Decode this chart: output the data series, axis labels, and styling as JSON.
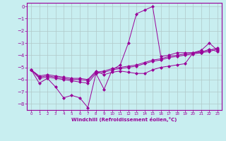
{
  "xlabel": "Windchill (Refroidissement éolien,°C)",
  "ylabel": "",
  "xlim": [
    -0.5,
    23.5
  ],
  "ylim": [
    -8.5,
    0.3
  ],
  "xticks": [
    0,
    1,
    2,
    3,
    4,
    5,
    6,
    7,
    8,
    9,
    10,
    11,
    12,
    13,
    14,
    15,
    16,
    17,
    18,
    19,
    20,
    21,
    22,
    23
  ],
  "yticks": [
    0,
    -1,
    -2,
    -3,
    -4,
    -5,
    -6,
    -7,
    -8
  ],
  "background_color": "#c8eef0",
  "line_color": "#990099",
  "grid_color": "#b0c8c8",
  "series": [
    {
      "x": [
        0,
        1,
        2,
        3,
        4,
        5,
        6,
        7,
        8,
        9,
        10,
        11,
        12,
        13,
        14,
        15,
        16,
        17,
        18,
        19,
        20,
        21,
        22,
        23
      ],
      "y": [
        -5.2,
        -6.3,
        -5.9,
        -6.6,
        -7.5,
        -7.3,
        -7.5,
        -8.3,
        -5.5,
        -6.8,
        -5.2,
        -4.8,
        -3.0,
        -0.6,
        -0.3,
        0.0,
        -4.1,
        -4.0,
        -3.8,
        -3.8,
        -3.8,
        -3.8,
        -3.5,
        -3.7
      ]
    },
    {
      "x": [
        0,
        1,
        2,
        3,
        4,
        5,
        6,
        7,
        8,
        9,
        10,
        11,
        12,
        13,
        14,
        15,
        16,
        17,
        18,
        19,
        20,
        21,
        22,
        23
      ],
      "y": [
        -5.2,
        -5.9,
        -5.8,
        -5.9,
        -6.0,
        -6.1,
        -6.2,
        -6.3,
        -5.5,
        -5.4,
        -5.2,
        -5.1,
        -5.0,
        -4.9,
        -4.7,
        -4.5,
        -4.4,
        -4.2,
        -4.1,
        -4.0,
        -3.9,
        -3.8,
        -3.7,
        -3.5
      ]
    },
    {
      "x": [
        0,
        1,
        2,
        3,
        4,
        5,
        6,
        7,
        8,
        9,
        10,
        11,
        12,
        13,
        14,
        15,
        16,
        17,
        18,
        19,
        20,
        21,
        22,
        23
      ],
      "y": [
        -5.2,
        -5.8,
        -5.7,
        -5.8,
        -5.9,
        -6.0,
        -6.0,
        -6.1,
        -5.4,
        -5.3,
        -5.1,
        -5.0,
        -4.9,
        -4.8,
        -4.6,
        -4.4,
        -4.3,
        -4.1,
        -4.0,
        -3.9,
        -3.8,
        -3.7,
        -3.6,
        -3.4
      ]
    },
    {
      "x": [
        0,
        1,
        2,
        3,
        4,
        5,
        6,
        7,
        8,
        9,
        10,
        11,
        12,
        13,
        14,
        15,
        16,
        17,
        18,
        19,
        20,
        21,
        22,
        23
      ],
      "y": [
        -5.2,
        -5.7,
        -5.6,
        -5.7,
        -5.8,
        -5.9,
        -5.9,
        -6.0,
        -5.3,
        -5.6,
        -5.4,
        -5.3,
        -5.4,
        -5.5,
        -5.5,
        -5.2,
        -5.0,
        -4.9,
        -4.8,
        -4.7,
        -3.8,
        -3.6,
        -3.0,
        -3.6
      ]
    }
  ]
}
